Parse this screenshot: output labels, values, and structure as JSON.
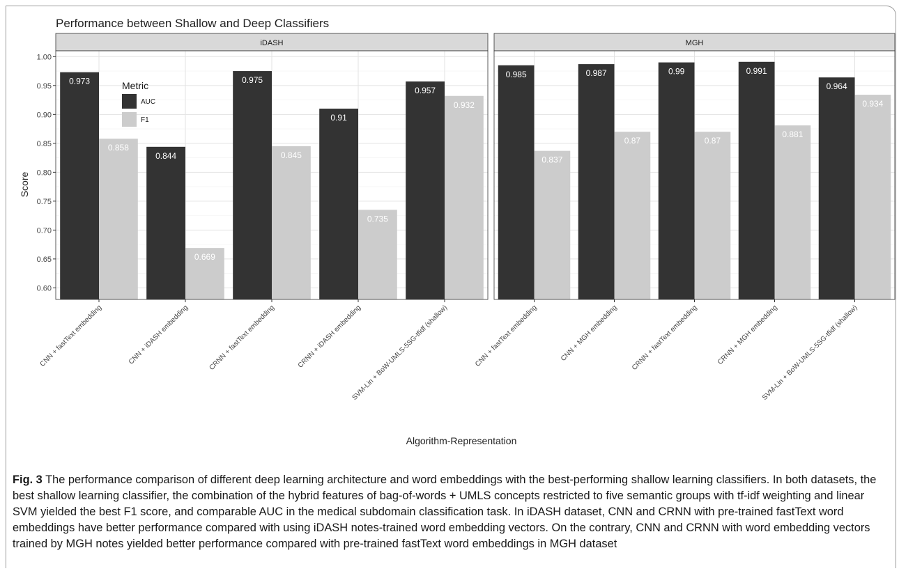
{
  "chart_data": {
    "type": "bar",
    "title": "Performance between Shallow and Deep Classifiers",
    "xlabel": "Algorithm-Representation",
    "ylabel": "Score",
    "ylim": [
      0.58,
      1.01
    ],
    "yticks": [
      "0.60",
      "0.65",
      "0.70",
      "0.75",
      "0.80",
      "0.85",
      "0.90",
      "0.95",
      "1.00"
    ],
    "legend": {
      "title": "Metric",
      "placement": "top-left inside iDASH panel"
    },
    "grid": true,
    "colors": {
      "AUC": "#333333",
      "F1": "#cccccc"
    },
    "panels": [
      {
        "name": "iDASH",
        "categories": [
          "CNN + fastText embedding",
          "CNN + iDASH embedding",
          "CRNN + fastText embedding",
          "CRNN + iDASH embedding",
          "SVM-Lin + BoW-UMLS-5SG-tfidf (shallow)"
        ],
        "series": [
          {
            "name": "AUC",
            "values": [
              0.973,
              0.844,
              0.975,
              0.91,
              0.957
            ],
            "labels": [
              "0.973",
              "0.844",
              "0.975",
              "0.91",
              "0.957"
            ]
          },
          {
            "name": "F1",
            "values": [
              0.858,
              0.669,
              0.845,
              0.735,
              0.932
            ],
            "labels": [
              "0.858",
              "0.669",
              "0.845",
              "0.735",
              "0.932"
            ]
          }
        ]
      },
      {
        "name": "MGH",
        "categories": [
          "CNN + fastText embedding",
          "CNN + MGH embedding",
          "CRNN + fastText embedding",
          "CRNN + MGH embedding",
          "SVM-Lin + BoW-UMLS-5SG-tfidf (shallow)"
        ],
        "series": [
          {
            "name": "AUC",
            "values": [
              0.985,
              0.987,
              0.99,
              0.991,
              0.964
            ],
            "labels": [
              "0.985",
              "0.987",
              "0.99",
              "0.991",
              "0.964"
            ]
          },
          {
            "name": "F1",
            "values": [
              0.837,
              0.87,
              0.87,
              0.881,
              0.934
            ],
            "labels": [
              "0.837",
              "0.87",
              "0.87",
              "0.881",
              "0.934"
            ]
          }
        ]
      }
    ]
  },
  "caption": {
    "label": "Fig. 3",
    "text": " The performance comparison of different deep learning architecture and word embeddings with the best-performing shallow learning classifiers. In both datasets, the best shallow learning classifier, the combination of the hybrid features of bag-of-words + UMLS concepts restricted to five semantic groups with tf-idf weighting and linear SVM yielded the best F1 score, and comparable AUC in the medical subdomain classification task. In iDASH dataset, CNN and CRNN with pre-trained fastText word embeddings have better performance compared with using iDASH notes-trained word embedding vectors. On the contrary, CNN and CRNN with word embedding vectors trained by MGH notes yielded better performance compared with pre-trained fastText word embeddings in MGH dataset"
  }
}
